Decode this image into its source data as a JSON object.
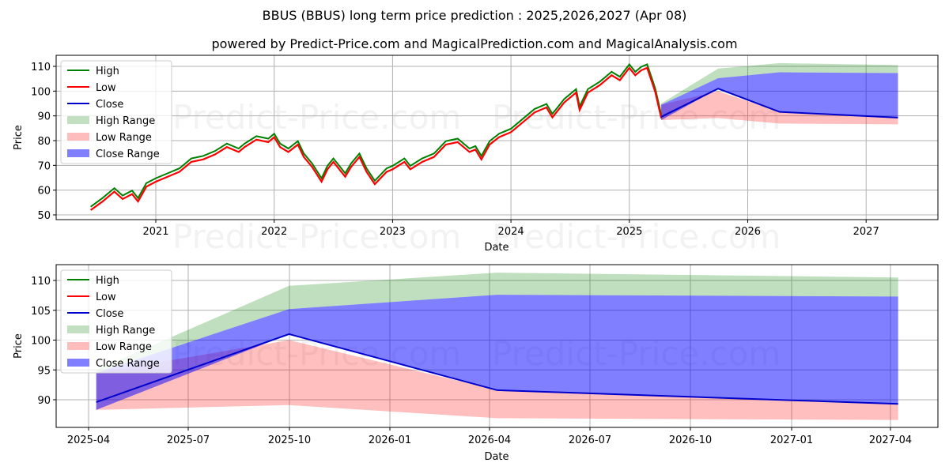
{
  "header": {
    "title": "BBUS (BBUS) long term price prediction : 2025,2026,2027 (Apr 08)",
    "subtitle": "powered by Predict-Price.com and MagicalPrediction.com and MagicalAnalysis.com"
  },
  "watermark": "Predict-Price.com",
  "legend": {
    "items": [
      {
        "label": "High",
        "type": "line",
        "color": "#008000"
      },
      {
        "label": "Low",
        "type": "line",
        "color": "#ff0000"
      },
      {
        "label": "Close",
        "type": "line",
        "color": "#0000cc"
      },
      {
        "label": "High Range",
        "type": "patch",
        "color": "#c2dfc2"
      },
      {
        "label": "Low Range",
        "type": "patch",
        "color": "#ffbcbc"
      },
      {
        "label": "Close Range",
        "type": "patch",
        "color": "#7f7fff"
      }
    ]
  },
  "chart_data": [
    {
      "type": "line",
      "title": "",
      "xlabel": "Date",
      "ylabel": "Price",
      "xticks": [
        "2021",
        "2022",
        "2023",
        "2024",
        "2025",
        "2026",
        "2027"
      ],
      "yticks": [
        50,
        60,
        70,
        80,
        90,
        100,
        110
      ],
      "ylim": [
        49,
        114
      ],
      "grid": true,
      "legend_position": "upper left",
      "history": {
        "x": [
          2020.45,
          2020.55,
          2020.65,
          2020.72,
          2020.8,
          2020.85,
          2020.92,
          2021.0,
          2021.1,
          2021.2,
          2021.3,
          2021.4,
          2021.5,
          2021.6,
          2021.7,
          2021.75,
          2021.85,
          2021.95,
          2022.0,
          2022.05,
          2022.12,
          2022.2,
          2022.25,
          2022.32,
          2022.4,
          2022.45,
          2022.5,
          2022.6,
          2022.65,
          2022.72,
          2022.78,
          2022.85,
          2022.95,
          2023.0,
          2023.1,
          2023.15,
          2023.25,
          2023.35,
          2023.45,
          2023.55,
          2023.65,
          2023.7,
          2023.75,
          2023.82,
          2023.9,
          2024.0,
          2024.1,
          2024.2,
          2024.3,
          2024.35,
          2024.45,
          2024.55,
          2024.58,
          2024.65,
          2024.75,
          2024.85,
          2024.92,
          2025.0,
          2025.05,
          2025.1,
          2025.15,
          2025.2,
          2025.22,
          2025.27
        ],
        "close": [
          52.5,
          56,
          60,
          57,
          59,
          56,
          62,
          64,
          66,
          68,
          72,
          73,
          75,
          78,
          76,
          78,
          81,
          80,
          82,
          78,
          76,
          79,
          74,
          70,
          64,
          69,
          72,
          66,
          70,
          74,
          68,
          63,
          68,
          69,
          72,
          69,
          72,
          74,
          79,
          80,
          76,
          77,
          73,
          79,
          82,
          84,
          88,
          92,
          94,
          90,
          96,
          100,
          93,
          100,
          103,
          107,
          105,
          110,
          107,
          109,
          110,
          103,
          100,
          89.6
        ]
      },
      "forecast": {
        "x": [
          "2025-04-08",
          "2025-10-01",
          "2026-04-08",
          "2027-04-08"
        ],
        "close": [
          89.6,
          101.0,
          91.6,
          89.3
        ],
        "high_range": {
          "lower": [
            94.5,
            105.2,
            107.6,
            107.3
          ],
          "upper": [
            95.0,
            109.1,
            111.3,
            110.5
          ]
        },
        "close_range": {
          "lower": [
            88.3,
            101.0,
            91.6,
            89.3
          ],
          "upper": [
            94.5,
            105.2,
            107.6,
            107.3
          ]
        },
        "low_range": {
          "lower": [
            88.3,
            89.1,
            86.9,
            86.6
          ],
          "upper": [
            94.5,
            100.0,
            91.6,
            89.3
          ]
        }
      }
    },
    {
      "type": "area",
      "title": "",
      "xlabel": "Date",
      "ylabel": "Price",
      "xticks": [
        "2025-04",
        "2025-07",
        "2025-10",
        "2026-01",
        "2026-04",
        "2026-07",
        "2026-10",
        "2027-01",
        "2027-04"
      ],
      "yticks": [
        90,
        95,
        100,
        105,
        110
      ],
      "ylim": [
        85.4,
        112.6
      ],
      "grid": true,
      "legend_position": "upper left",
      "x": [
        "2025-04-08",
        "2025-10-01",
        "2026-04-08",
        "2027-04-08"
      ],
      "series": [
        {
          "name": "Close",
          "values": [
            89.6,
            101.0,
            91.6,
            89.3
          ]
        },
        {
          "name": "High Range upper",
          "values": [
            95.0,
            109.1,
            111.3,
            110.5
          ]
        },
        {
          "name": "Close Range upper",
          "values": [
            94.5,
            105.2,
            107.6,
            107.3
          ]
        },
        {
          "name": "Close Range lower",
          "values": [
            88.3,
            101.0,
            91.6,
            89.3
          ]
        },
        {
          "name": "Low Range upper",
          "values": [
            94.5,
            100.0,
            91.6,
            89.3
          ]
        },
        {
          "name": "Low Range lower",
          "values": [
            88.3,
            89.1,
            86.9,
            86.6
          ]
        }
      ]
    }
  ]
}
